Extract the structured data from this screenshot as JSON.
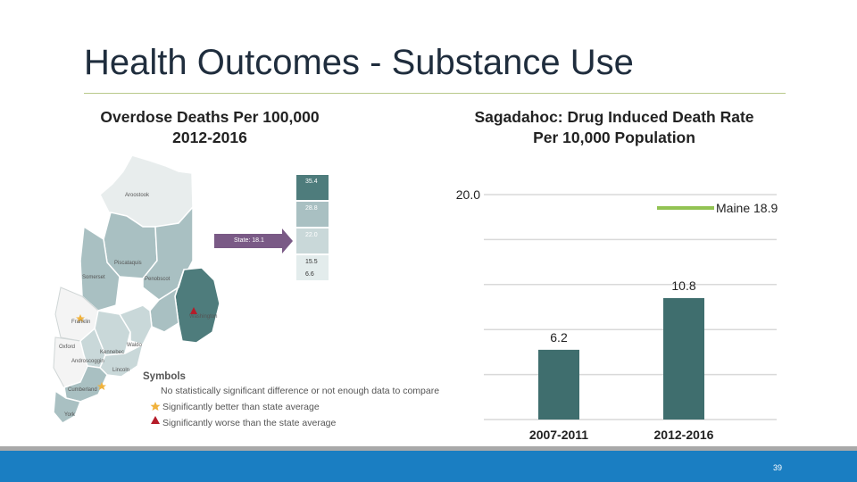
{
  "slide": {
    "title": "Health Outcomes - Substance Use",
    "page_number": "39"
  },
  "map_panel": {
    "heading_line1": "Overdose Deaths Per 100,000",
    "heading_line2": "2012-2016",
    "scale_values": [
      "35.4",
      "28.8",
      "22.0",
      "15.5",
      "6.6"
    ],
    "state_callout": "State: 18.1",
    "counties": {
      "aroostook": "Aroostook",
      "piscataquis": "Piscataquis",
      "somerset": "Somerset",
      "penobscot": "Penobscot",
      "washington": "Washington",
      "franklin": "Franklin",
      "oxford": "Oxford",
      "kennebec": "Kennebec",
      "waldo": "Waldo",
      "androscoggin": "Androscoggin",
      "cumberland": "Cumberland",
      "york": "York",
      "lincoln": "Lincoln"
    },
    "symbols_title": "Symbols",
    "legend": {
      "no_sig": "No statistically significant difference or not enough data to compare",
      "better": "Significantly better than state average",
      "worse": "Significantly worse than the state average"
    },
    "colors": {
      "highest": "#4e7c7c",
      "mid_high": "#a9c0c2",
      "mid": "#c9d8d9",
      "low": "#e3ecec",
      "lowest": "#f4f4f4",
      "callout": "#7a5a86",
      "star": "#f0b23c",
      "triangle": "#b51c2a"
    }
  },
  "chart_panel": {
    "heading_line1": "Sagadahoc: Drug Induced Death Rate",
    "heading_line2": "Per 10,000 Population",
    "colors": {
      "bar": "#3f6e6e",
      "benchmark": "#92c353",
      "grid": "#d9d9d9"
    }
  },
  "chart_data": {
    "type": "bar",
    "title": "Sagadahoc: Drug Induced Death Rate Per 10,000 Population",
    "categories": [
      "2007-2011",
      "2012-2016"
    ],
    "values": [
      6.2,
      10.8
    ],
    "value_labels": [
      "6.2",
      "10.8"
    ],
    "ylim": [
      0,
      20
    ],
    "y_tick_labels": [
      "20.0"
    ],
    "benchmark": {
      "label": "Maine 18.9",
      "value": 18.9
    },
    "grid": true,
    "legend": "top-right"
  }
}
